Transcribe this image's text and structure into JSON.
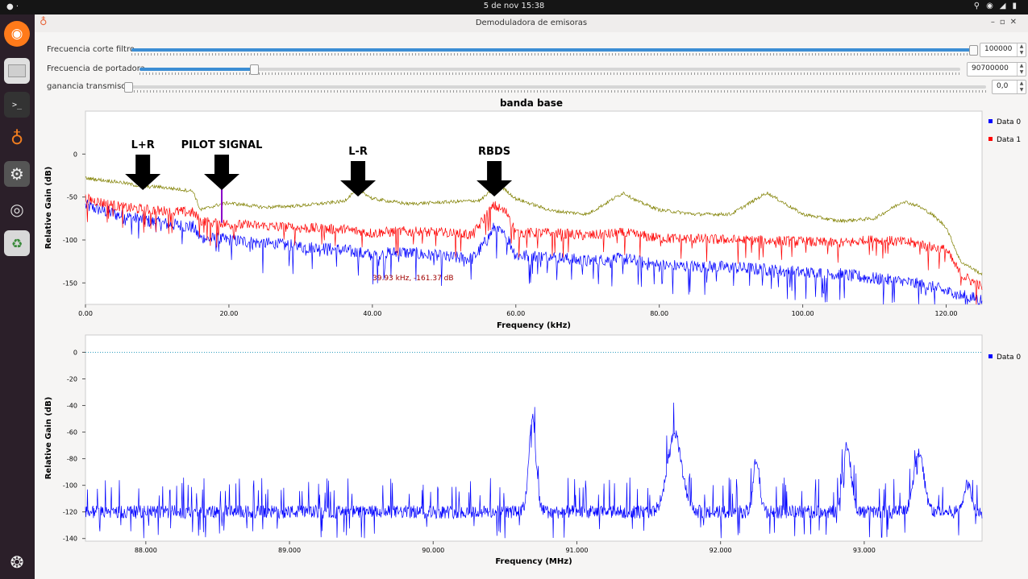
{
  "system": {
    "clock": "5 de nov  15:38"
  },
  "window": {
    "title": "Demoduladora de emisoras"
  },
  "dock": {
    "items": [
      {
        "icon": "firefox-icon"
      },
      {
        "icon": "files-icon"
      },
      {
        "icon": "terminal-icon"
      },
      {
        "icon": "gnuradio-icon"
      },
      {
        "icon": "settings-icon"
      },
      {
        "icon": "disc-icon"
      },
      {
        "icon": "trash-icon"
      }
    ],
    "terminal_glyph": ">_"
  },
  "controls": [
    {
      "label": "Frecuencia corte filtro",
      "value": "100000",
      "fraction": 1.0
    },
    {
      "label": "Frecuencia de portadora",
      "value": "90700000",
      "fraction": 0.139
    },
    {
      "label": "ganancia transmisor",
      "value": "0,0",
      "fraction": 0.0
    }
  ],
  "plot1": {
    "title": "banda base",
    "xlabel": "Frequency (kHz)",
    "ylabel": "Relative Gain (dB)",
    "xticks": [
      "0.00",
      "20.00",
      "40.00",
      "60.00",
      "80.00",
      "100.00",
      "120.00"
    ],
    "yticks": [
      "0",
      "-50",
      "-100",
      "-150"
    ],
    "legend": [
      "Data 0",
      "Data 1"
    ],
    "cursor_readout": "39.93 kHz, -161.37 dB",
    "annotations": [
      "L+R",
      "PILOT SIGNAL",
      "L-R",
      "RBDS"
    ],
    "colors": {
      "data0": "#0000ff",
      "data1": "#ff0000",
      "avg": "#808000",
      "pilot": "#8a00c8",
      "cursor_text": "#a00000"
    }
  },
  "plot2": {
    "xlabel": "Frequency (MHz)",
    "ylabel": "Relative Gain (dB)",
    "xticks": [
      "88.000",
      "89.000",
      "90.000",
      "91.000",
      "92.000",
      "93.000"
    ],
    "yticks": [
      "0",
      "-20",
      "-40",
      "-60",
      "-80",
      "-100",
      "-120",
      "-140"
    ],
    "legend": [
      "Data 0"
    ],
    "colors": {
      "data0": "#0000ff",
      "ref": "#30a0c0"
    }
  },
  "chart_data": [
    {
      "type": "line",
      "title": "banda base",
      "xlabel": "Frequency (kHz)",
      "ylabel": "Relative Gain (dB)",
      "xlim": [
        0,
        125
      ],
      "ylim": [
        -175,
        50
      ],
      "series": [
        {
          "name": "Data 0",
          "x": [
            0,
            5,
            10,
            15,
            16,
            20,
            30,
            36,
            40,
            44,
            50,
            54,
            56,
            57,
            59,
            60,
            65,
            70,
            75,
            80,
            90,
            100,
            105,
            110,
            115,
            118,
            120,
            122,
            125
          ],
          "y": [
            -60,
            -72,
            -80,
            -85,
            -98,
            -100,
            -108,
            -112,
            -118,
            -114,
            -120,
            -122,
            -100,
            -85,
            -100,
            -118,
            -120,
            -125,
            -122,
            -130,
            -132,
            -138,
            -140,
            -145,
            -150,
            -155,
            -160,
            -165,
            -170
          ]
        },
        {
          "name": "Data 1",
          "x": [
            0,
            5,
            10,
            15,
            16,
            20,
            30,
            36,
            40,
            44,
            50,
            54,
            56,
            57,
            59,
            60,
            65,
            70,
            75,
            80,
            90,
            100,
            105,
            110,
            115,
            118,
            120,
            122,
            125
          ],
          "y": [
            -52,
            -62,
            -66,
            -68,
            -78,
            -82,
            -86,
            -88,
            -92,
            -90,
            -92,
            -94,
            -70,
            -60,
            -70,
            -92,
            -92,
            -95,
            -92,
            -98,
            -100,
            -102,
            -104,
            -100,
            -103,
            -108,
            -112,
            -140,
            -155
          ]
        },
        {
          "name": "",
          "x": [
            0,
            5,
            8,
            10,
            15,
            16,
            19,
            20,
            25,
            30,
            36,
            38,
            40,
            45,
            50,
            55,
            57,
            58,
            60,
            65,
            70,
            74,
            75,
            77,
            80,
            85,
            90,
            94,
            95,
            97,
            100,
            105,
            110,
            113,
            114,
            116,
            118,
            120,
            122,
            125
          ],
          "y": [
            -28,
            -33,
            -38,
            -38,
            -43,
            -65,
            -58,
            -57,
            -62,
            -60,
            -55,
            -40,
            -52,
            -58,
            -56,
            -54,
            -40,
            -38,
            -52,
            -66,
            -70,
            -50,
            -45,
            -55,
            -65,
            -70,
            -70,
            -50,
            -45,
            -55,
            -70,
            -78,
            -75,
            -60,
            -55,
            -60,
            -70,
            -85,
            -125,
            -140
          ]
        }
      ],
      "annotations": [
        {
          "text": "L+R",
          "x": 8
        },
        {
          "text": "PILOT SIGNAL",
          "x": 19
        },
        {
          "text": "L-R",
          "x": 38
        },
        {
          "text": "RBDS",
          "x": 57
        }
      ],
      "legend_position": "right",
      "grid": false
    },
    {
      "type": "line",
      "xlabel": "Frequency (MHz)",
      "ylabel": "Relative Gain (dB)",
      "xlim": [
        87.58,
        93.82
      ],
      "ylim": [
        -142,
        13
      ],
      "series": [
        {
          "name": "Data 0",
          "peaks": [
            {
              "x": 90.69,
              "y": -50
            },
            {
              "x": 91.68,
              "y": -62
            },
            {
              "x": 92.25,
              "y": -80
            },
            {
              "x": 92.88,
              "y": -70
            },
            {
              "x": 93.38,
              "y": -75
            },
            {
              "x": 93.72,
              "y": -100
            }
          ],
          "noise_floor": -120
        }
      ],
      "reference_line": 0,
      "legend_position": "right",
      "grid": false
    }
  ]
}
